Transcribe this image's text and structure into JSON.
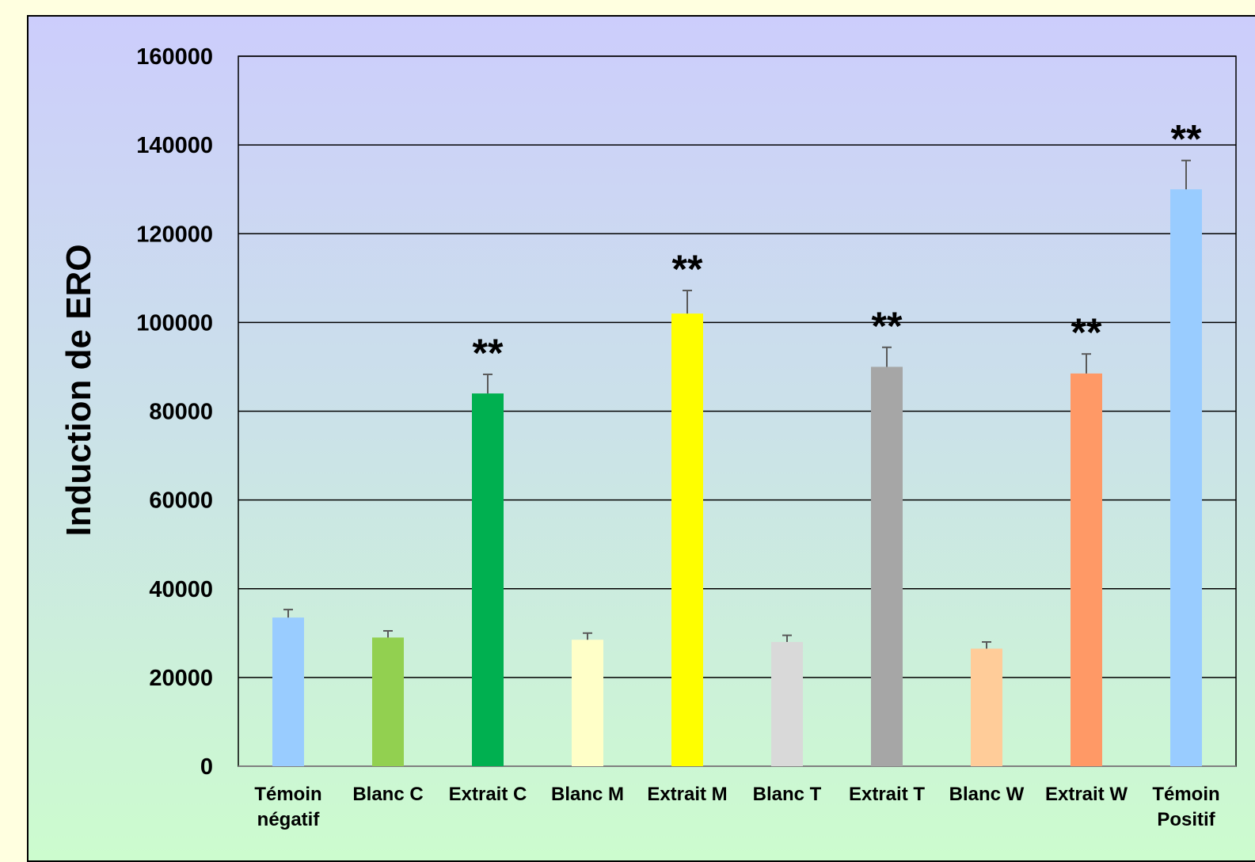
{
  "chart_data": {
    "type": "bar",
    "title": "",
    "xlabel": "",
    "ylabel": "Induction de ERO",
    "ylim": [
      0,
      160000
    ],
    "yticks": [
      "0",
      "20000",
      "40000",
      "60000",
      "80000",
      "100000",
      "120000",
      "140000",
      "160000"
    ],
    "categories": [
      [
        "Témoin",
        "négatif"
      ],
      [
        "Blanc C"
      ],
      [
        "Extrait C"
      ],
      [
        "Blanc M"
      ],
      [
        "Extrait M"
      ],
      [
        "Blanc T"
      ],
      [
        "Extrait T"
      ],
      [
        "Blanc W"
      ],
      [
        "Extrait W"
      ],
      [
        "Témoin",
        "Positif"
      ]
    ],
    "values": [
      33500,
      29000,
      84000,
      28500,
      102000,
      28000,
      90000,
      26500,
      88500,
      130000
    ],
    "errors": [
      1800,
      1500,
      4300,
      1500,
      5200,
      1500,
      4400,
      1500,
      4400,
      6500
    ],
    "significance": [
      "",
      "",
      "**",
      "",
      "**",
      "",
      "**",
      "",
      "**",
      "**"
    ],
    "colors": [
      "#99ccff",
      "#92d050",
      "#00b050",
      "#ffffc8",
      "#ffff00",
      "#d9d9d9",
      "#a6a6a6",
      "#ffcc99",
      "#ff9966",
      "#99ccff"
    ],
    "grid": true,
    "legend": "none"
  }
}
